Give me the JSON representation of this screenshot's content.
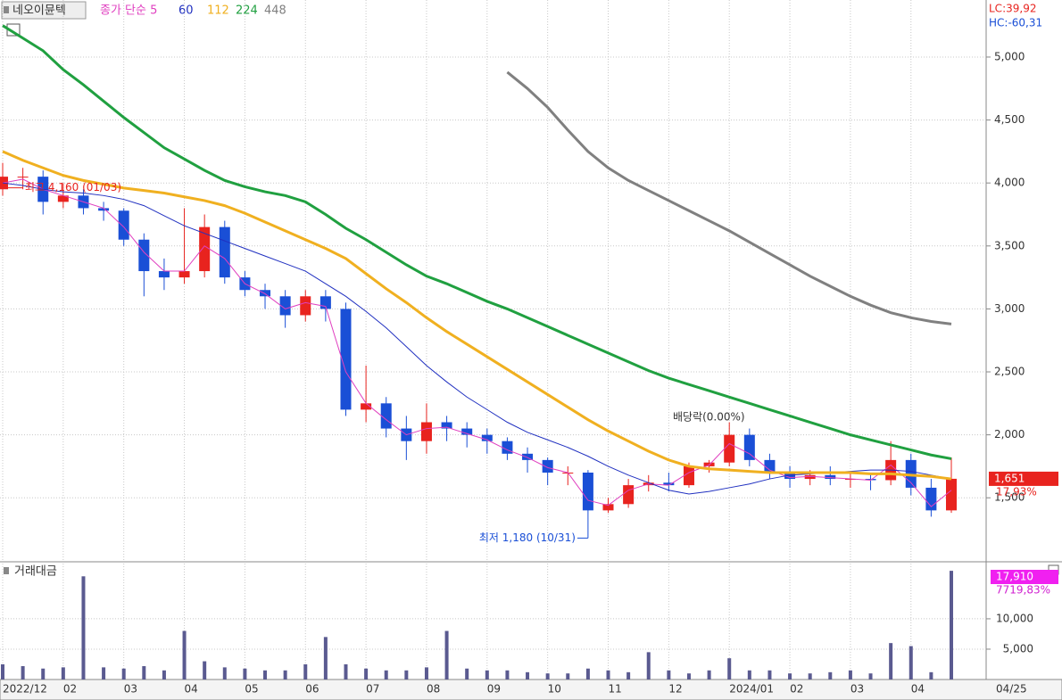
{
  "chart_data": [
    {
      "type": "candlestick",
      "legend": {
        "name": "네오이뮨텍",
        "ma_label": "종가 단순 5"
      },
      "ylim": [
        1006,
        5453
      ],
      "yticks": [
        {
          "value": 1500,
          "label": "1,500"
        },
        {
          "value": 2000,
          "label": "2,000"
        },
        {
          "value": 2500,
          "label": "2,500"
        },
        {
          "value": 3000,
          "label": "3,000"
        },
        {
          "value": 3500,
          "label": "3,500"
        },
        {
          "value": 4000,
          "label": "4,000"
        },
        {
          "value": 4500,
          "label": "4,500"
        },
        {
          "value": 5000,
          "label": "5,000"
        }
      ],
      "grid": true,
      "up_color": "#e8231e",
      "down_color": "#1a4fd6",
      "open": [
        3950,
        4050,
        4050,
        3850,
        3900,
        3800,
        3780,
        3550,
        3300,
        3250,
        3300,
        3650,
        3250,
        3150,
        3100,
        2950,
        3100,
        3000,
        2200,
        2250,
        2050,
        1950,
        2100,
        2050,
        2000,
        1950,
        1850,
        1800,
        1700,
        1700,
        1400,
        1450,
        1600,
        1620,
        1600,
        1750,
        1780,
        2000,
        1800,
        1700,
        1650,
        1680,
        1650,
        1650,
        1640,
        1800,
        1580,
        1400
      ],
      "high": [
        4160,
        4120,
        4100,
        4000,
        3950,
        3850,
        3800,
        3600,
        3400,
        3800,
        3750,
        3700,
        3300,
        3200,
        3150,
        3150,
        3150,
        3050,
        2550,
        2300,
        2150,
        2250,
        2150,
        2100,
        2050,
        1980,
        1900,
        1820,
        1750,
        1720,
        1500,
        1650,
        1680,
        1700,
        1780,
        1800,
        2100,
        2050,
        1850,
        1750,
        1720,
        1750,
        1700,
        1700,
        1950,
        1850,
        1650,
        1820
      ],
      "low": [
        3900,
        3950,
        3750,
        3800,
        3750,
        3700,
        3500,
        3100,
        3150,
        3200,
        3250,
        3200,
        3100,
        3000,
        2850,
        2900,
        2900,
        2150,
        2100,
        1980,
        1800,
        1850,
        1950,
        1900,
        1850,
        1800,
        1700,
        1600,
        1600,
        1180,
        1380,
        1420,
        1550,
        1550,
        1580,
        1700,
        1750,
        1750,
        1650,
        1580,
        1600,
        1600,
        1580,
        1560,
        1600,
        1520,
        1350,
        1380
      ],
      "close": [
        4050,
        4050,
        3850,
        3900,
        3800,
        3780,
        3550,
        3300,
        3250,
        3300,
        3650,
        3250,
        3150,
        3100,
        2950,
        3100,
        3000,
        2200,
        2250,
        2050,
        1950,
        2100,
        2050,
        2000,
        1950,
        1850,
        1800,
        1700,
        1700,
        1400,
        1450,
        1600,
        1620,
        1600,
        1750,
        1780,
        2000,
        1800,
        1700,
        1650,
        1680,
        1650,
        1650,
        1640,
        1800,
        1580,
        1400,
        1651
      ],
      "series": [
        {
          "name": "5",
          "color": "#e040c0",
          "values": [
            4000,
            4030,
            3950,
            3900,
            3850,
            3800,
            3650,
            3450,
            3300,
            3300,
            3500,
            3400,
            3200,
            3120,
            3000,
            3050,
            3020,
            2500,
            2250,
            2120,
            2000,
            2050,
            2060,
            2010,
            1960,
            1880,
            1820,
            1740,
            1700,
            1480,
            1440,
            1560,
            1610,
            1600,
            1700,
            1760,
            1930,
            1850,
            1720,
            1660,
            1670,
            1660,
            1650,
            1640,
            1760,
            1620,
            1430,
            1560
          ]
        },
        {
          "name": "60",
          "color": "#2030c0",
          "values": [
            4000,
            3980,
            3950,
            3930,
            3920,
            3900,
            3870,
            3820,
            3740,
            3660,
            3600,
            3540,
            3480,
            3420,
            3360,
            3300,
            3200,
            3100,
            2980,
            2850,
            2700,
            2550,
            2420,
            2300,
            2200,
            2100,
            2020,
            1960,
            1900,
            1830,
            1750,
            1680,
            1620,
            1560,
            1530,
            1550,
            1580,
            1610,
            1650,
            1680,
            1690,
            1700,
            1710,
            1720,
            1720,
            1710,
            1680,
            1650
          ]
        },
        {
          "name": "112",
          "color": "#f0b020",
          "values": [
            4250,
            4180,
            4120,
            4060,
            4020,
            3990,
            3960,
            3940,
            3920,
            3890,
            3860,
            3820,
            3760,
            3690,
            3620,
            3550,
            3480,
            3400,
            3280,
            3160,
            3050,
            2930,
            2820,
            2720,
            2620,
            2520,
            2420,
            2320,
            2220,
            2120,
            2030,
            1950,
            1870,
            1800,
            1750,
            1730,
            1720,
            1710,
            1700,
            1700,
            1700,
            1700,
            1700,
            1690,
            1690,
            1680,
            1670,
            1650
          ]
        },
        {
          "name": "224",
          "color": "#20a040",
          "values": [
            5250,
            5150,
            5050,
            4900,
            4780,
            4650,
            4520,
            4400,
            4280,
            4190,
            4100,
            4020,
            3970,
            3930,
            3900,
            3850,
            3750,
            3640,
            3550,
            3450,
            3350,
            3260,
            3200,
            3130,
            3060,
            3000,
            2930,
            2860,
            2790,
            2720,
            2650,
            2580,
            2510,
            2450,
            2400,
            2350,
            2300,
            2250,
            2200,
            2150,
            2100,
            2050,
            2000,
            1960,
            1920,
            1880,
            1840,
            1810
          ]
        },
        {
          "name": "448",
          "color": "#808080",
          "values": [
            null,
            null,
            null,
            null,
            null,
            null,
            null,
            null,
            null,
            null,
            null,
            null,
            null,
            null,
            null,
            null,
            null,
            null,
            null,
            null,
            null,
            null,
            null,
            null,
            null,
            4880,
            4750,
            4600,
            4420,
            4250,
            4120,
            4020,
            3940,
            3860,
            3780,
            3700,
            3620,
            3530,
            3440,
            3350,
            3260,
            3180,
            3100,
            3030,
            2970,
            2930,
            2900,
            2880
          ]
        }
      ],
      "high_label": "최고 4,160 (01/03)",
      "low_label": "최저 1,180 (10/31)",
      "dividend_label": "배당락(0.00%)",
      "lc": "LC:39,92",
      "hc": "HC:-60,31",
      "price_tag": "1,651",
      "change_tag": "17,93%"
    },
    {
      "type": "bar",
      "title": "거래대금",
      "color": "#5a5a90",
      "categories": [
        "2022/12",
        null,
        null,
        "02",
        null,
        null,
        "03",
        null,
        null,
        "04",
        null,
        null,
        "05",
        null,
        null,
        "06",
        null,
        null,
        "07",
        null,
        null,
        "08",
        null,
        null,
        "09",
        null,
        null,
        "10",
        null,
        null,
        "11",
        null,
        null,
        "12",
        null,
        null,
        "2024/01",
        null,
        null,
        "02",
        null,
        null,
        "03",
        null,
        null,
        "04",
        null,
        null
      ],
      "values": [
        2500,
        2200,
        1800,
        2000,
        17000,
        2000,
        1800,
        2200,
        1500,
        8000,
        3000,
        2000,
        1800,
        1500,
        1500,
        2500,
        7000,
        2500,
        1800,
        1500,
        1500,
        2000,
        8000,
        1800,
        1500,
        1500,
        1200,
        1000,
        1000,
        1800,
        1500,
        1200,
        4500,
        1500,
        1000,
        1500,
        3500,
        1500,
        1500,
        1000,
        1000,
        1200,
        1500,
        1000,
        6000,
        5500,
        1200,
        17910
      ],
      "ylim": [
        0,
        19100
      ],
      "yticks": [
        {
          "value": 5000,
          "label": "5,000"
        },
        {
          "value": 10000,
          "label": "10,000"
        }
      ],
      "grid": true,
      "volume_tag": "17,910",
      "ratio_tag": "7719,83%",
      "last_date": "04/25"
    }
  ]
}
